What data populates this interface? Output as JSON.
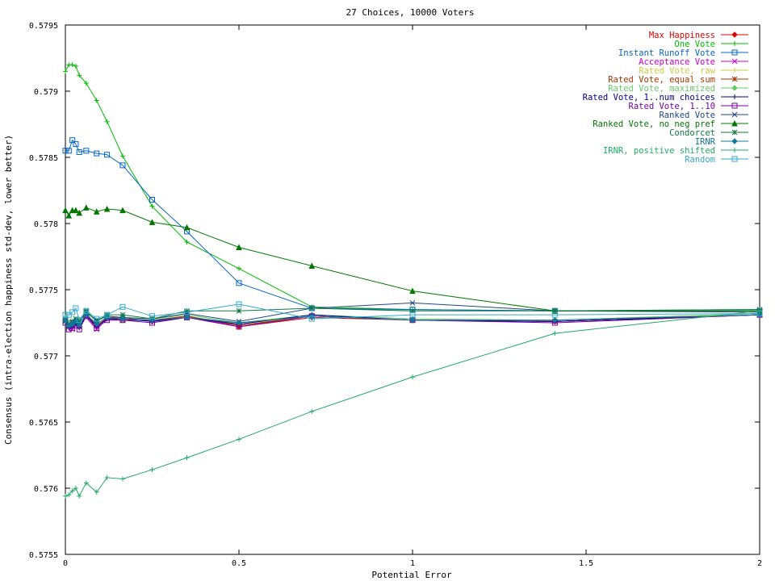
{
  "chart_data": {
    "type": "line",
    "title": "27 Choices, 10000 Voters",
    "xlabel": "Potential Error",
    "ylabel": "Consensus (intra-election happiness std-dev, lower better)",
    "xlim": [
      0,
      2
    ],
    "ylim": [
      0.5755,
      0.5795
    ],
    "xticks": [
      "0",
      "0.5",
      "1",
      "1.5",
      "2"
    ],
    "yticks": [
      "0.5755",
      "0.576",
      "0.5765",
      "0.577",
      "0.5775",
      "0.578",
      "0.5785",
      "0.579",
      "0.5795"
    ],
    "grid": false,
    "legend_position": "top-right",
    "x": [
      0,
      0.01,
      0.02,
      0.03,
      0.04,
      0.06,
      0.09,
      0.12,
      0.165,
      0.25,
      0.35,
      0.5,
      0.71,
      1,
      1.41,
      2
    ],
    "series": [
      {
        "name": "Max Happiness",
        "color": "#dd0000",
        "marker": "diamond",
        "values": [
          0.57728,
          0.57724,
          0.57725,
          0.57726,
          0.57722,
          0.57732,
          0.57722,
          0.57729,
          0.57729,
          0.57726,
          0.5773,
          0.57722,
          0.57729,
          0.57727,
          0.57726,
          0.57731
        ]
      },
      {
        "name": "One Vote",
        "color": "#00bb00",
        "marker": "plus",
        "values": [
          0.57915,
          0.5792,
          0.5792,
          0.57919,
          0.57912,
          0.57906,
          0.57893,
          0.57877,
          0.57851,
          0.57813,
          0.57786,
          0.57766,
          0.57737,
          0.57735,
          0.57734,
          0.57735
        ]
      },
      {
        "name": "Instant Runoff Vote",
        "color": "#0066cc",
        "marker": "square",
        "values": [
          0.57855,
          0.57855,
          0.57863,
          0.5786,
          0.57854,
          0.57855,
          0.57853,
          0.57852,
          0.57844,
          0.57818,
          0.57794,
          0.57755,
          0.57736,
          0.57735,
          0.57734,
          0.57734
        ]
      },
      {
        "name": "Acceptance Vote",
        "color": "#cc00cc",
        "marker": "x",
        "values": [
          0.57726,
          0.57722,
          0.5772,
          0.57726,
          0.57724,
          0.57729,
          0.5772,
          0.57728,
          0.57727,
          0.57727,
          0.57729,
          0.57723,
          0.5773,
          0.57727,
          0.57726,
          0.57731
        ]
      },
      {
        "name": "Rated Vote, raw",
        "color": "#cccc44",
        "marker": "plus",
        "values": [
          0.57727,
          0.57723,
          0.57724,
          0.57726,
          0.57723,
          0.57731,
          0.57724,
          0.57729,
          0.57728,
          0.57727,
          0.5773,
          0.57724,
          0.5773,
          0.57727,
          0.57727,
          0.57732
        ]
      },
      {
        "name": "Rated Vote, equal sum",
        "color": "#aa3300",
        "marker": "star",
        "values": [
          0.57728,
          0.57722,
          0.57723,
          0.57725,
          0.57722,
          0.57732,
          0.57723,
          0.57728,
          0.57727,
          0.57727,
          0.5773,
          0.57723,
          0.5773,
          0.57727,
          0.57726,
          0.57731
        ]
      },
      {
        "name": "Rated Vote, maximized",
        "color": "#66cc66",
        "marker": "diamond",
        "values": [
          0.57729,
          0.57725,
          0.57726,
          0.57727,
          0.57724,
          0.57733,
          0.57726,
          0.5773,
          0.57729,
          0.57728,
          0.57731,
          0.57725,
          0.57731,
          0.57728,
          0.57727,
          0.57732
        ]
      },
      {
        "name": "Rated Vote, 1..num choices",
        "color": "#000088",
        "marker": "plus",
        "values": [
          0.57726,
          0.57721,
          0.57722,
          0.57724,
          0.57721,
          0.57731,
          0.57722,
          0.57728,
          0.57728,
          0.57726,
          0.57729,
          0.57724,
          0.57731,
          0.57727,
          0.57726,
          0.57731
        ]
      },
      {
        "name": "Rated Vote, 1..10",
        "color": "#7700aa",
        "marker": "square",
        "values": [
          0.57725,
          0.5772,
          0.57721,
          0.57723,
          0.5772,
          0.5773,
          0.57721,
          0.57727,
          0.57727,
          0.57725,
          0.57729,
          0.57722,
          0.5773,
          0.57727,
          0.57725,
          0.57731
        ]
      },
      {
        "name": "Ranked Vote",
        "color": "#224488",
        "marker": "x",
        "values": [
          0.57727,
          0.57724,
          0.57726,
          0.57728,
          0.57726,
          0.57733,
          0.57727,
          0.5773,
          0.57729,
          0.57728,
          0.57732,
          0.57726,
          0.57736,
          0.5774,
          0.57734,
          0.57733
        ]
      },
      {
        "name": "Ranked Vote, no neg pref",
        "color": "#007700",
        "marker": "triangle",
        "values": [
          0.5781,
          0.57806,
          0.5781,
          0.5781,
          0.57808,
          0.57812,
          0.57809,
          0.57811,
          0.5781,
          0.57801,
          0.57797,
          0.57782,
          0.57768,
          0.57749,
          0.57734,
          0.57734
        ]
      },
      {
        "name": "Condorcet",
        "color": "#117744",
        "marker": "star",
        "values": [
          0.57726,
          0.57723,
          0.57725,
          0.57728,
          0.57727,
          0.57734,
          0.57726,
          0.57731,
          0.57731,
          0.57728,
          0.57734,
          0.57734,
          0.57736,
          0.57734,
          0.57734,
          0.57735
        ]
      },
      {
        "name": "IRNR",
        "color": "#117799",
        "marker": "diamond",
        "values": [
          0.57727,
          0.57723,
          0.57724,
          0.57726,
          0.57723,
          0.57731,
          0.57724,
          0.57729,
          0.57728,
          0.57727,
          0.57729,
          0.57725,
          0.5773,
          0.57727,
          0.57727,
          0.57731
        ]
      },
      {
        "name": "IRNR, positive shifted",
        "color": "#22aa66",
        "marker": "plus",
        "values": [
          0.57594,
          0.57595,
          0.57598,
          0.576,
          0.57594,
          0.57604,
          0.57597,
          0.57608,
          0.57607,
          0.57614,
          0.57623,
          0.57637,
          0.57658,
          0.57684,
          0.57717,
          0.57734
        ]
      },
      {
        "name": "Random",
        "color": "#33aacc",
        "marker": "square",
        "values": [
          0.57731,
          0.57731,
          0.57733,
          0.57736,
          0.57727,
          0.57734,
          0.57728,
          0.57731,
          0.57737,
          0.5773,
          0.57733,
          0.57739,
          0.57728,
          0.57731,
          0.57731,
          0.57732
        ]
      }
    ]
  }
}
